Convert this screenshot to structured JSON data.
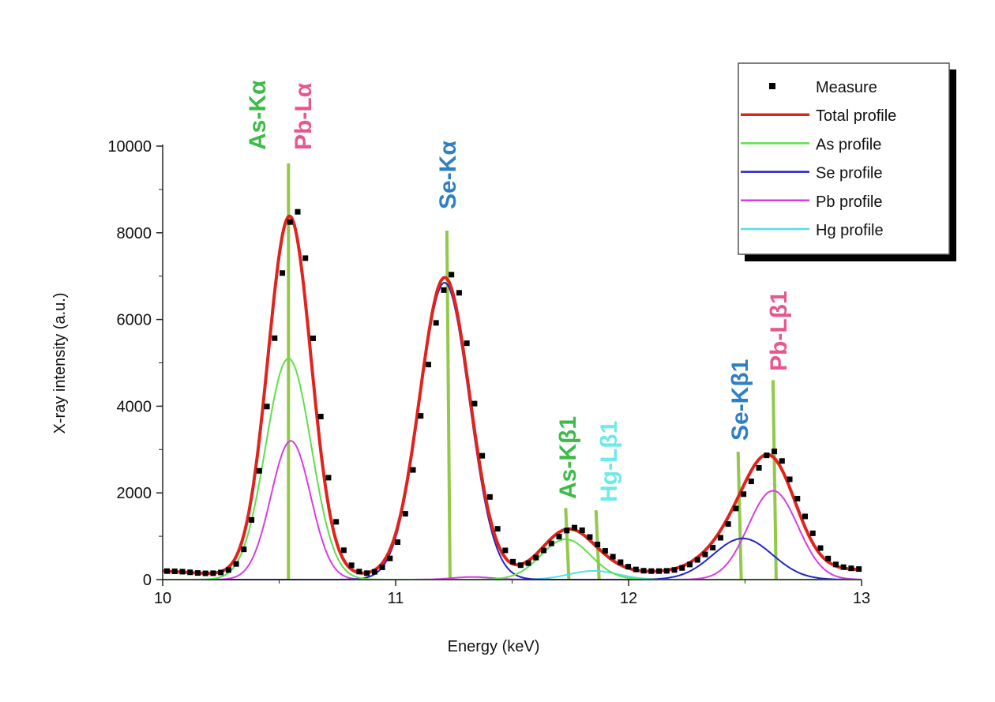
{
  "chart_data": {
    "type": "line",
    "xlabel": "Energy (keV)",
    "ylabel": "X-ray intensity (a.u.)",
    "xlim": [
      10,
      13
    ],
    "ylim": [
      0,
      10000
    ],
    "xticks": [
      "10",
      "11",
      "12",
      "13"
    ],
    "yticks": [
      "0",
      "2000",
      "4000",
      "6000",
      "8000",
      "10000"
    ],
    "grid": false,
    "legend_position": "top-right",
    "legend": [
      {
        "label": "Measure",
        "color": "#000000",
        "marker": "square"
      },
      {
        "label": "Total profile",
        "color": "#e0231c"
      },
      {
        "label": "As profile",
        "color": "#5ee04a"
      },
      {
        "label": "Se profile",
        "color": "#2424c8"
      },
      {
        "label": "Pb profile",
        "color": "#d63ee0"
      },
      {
        "label": "Hg profile",
        "color": "#4fe3e6"
      }
    ],
    "baseline": [
      [
        10,
        200
      ],
      [
        10.3,
        100
      ],
      [
        11,
        90
      ],
      [
        11.6,
        110
      ],
      [
        12,
        150
      ],
      [
        12.3,
        200
      ],
      [
        13,
        230
      ]
    ],
    "components": [
      {
        "series": "As profile",
        "peaks": [
          {
            "center": 10.54,
            "height": 5100,
            "fwhm": 0.23
          },
          {
            "center": 11.73,
            "height": 930,
            "fwhm": 0.25
          }
        ]
      },
      {
        "series": "Se profile",
        "peaks": [
          {
            "center": 11.21,
            "height": 6850,
            "fwhm": 0.25
          },
          {
            "center": 12.49,
            "height": 950,
            "fwhm": 0.3
          }
        ]
      },
      {
        "series": "Pb profile",
        "peaks": [
          {
            "center": 10.55,
            "height": 3200,
            "fwhm": 0.2
          },
          {
            "center": 11.33,
            "height": 60,
            "fwhm": 0.2
          },
          {
            "center": 12.62,
            "height": 2050,
            "fwhm": 0.25
          }
        ]
      },
      {
        "series": "Hg profile",
        "peaks": [
          {
            "center": 11.85,
            "height": 200,
            "fwhm": 0.25
          }
        ]
      }
    ],
    "measure_step_kev": 0.033,
    "emission_lines": [
      {
        "label": "As-Kα",
        "energy": 10.54,
        "marker_height": 9600,
        "color": "#3dbb48"
      },
      {
        "label": "Pb-Lα",
        "energy": 10.54,
        "marker_height": 9600,
        "color": "#e8568f"
      },
      {
        "label": "Se-Kα",
        "energy": 11.22,
        "marker_height": 8050,
        "color": "#2f7fc4"
      },
      {
        "label": "As-Kβ1",
        "energy": 11.73,
        "marker_height": 1650,
        "color": "#3dbb48"
      },
      {
        "label": "Hg-Lβ1",
        "energy": 11.86,
        "marker_height": 1600,
        "color": "#6ee9ec"
      },
      {
        "label": "Se-Kβ1",
        "energy": 12.47,
        "marker_height": 2950,
        "color": "#2f7fc4"
      },
      {
        "label": "Pb-Lβ1",
        "energy": 12.62,
        "marker_height": 4600,
        "color": "#e8568f"
      }
    ],
    "marker_line_color": "#93c84a"
  }
}
